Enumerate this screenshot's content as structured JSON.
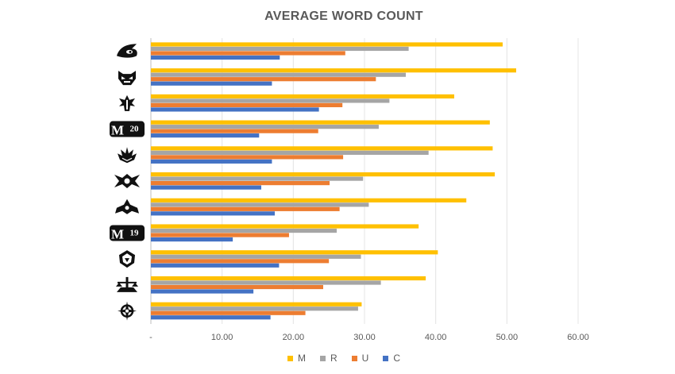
{
  "chart_data": {
    "type": "bar",
    "orientation": "horizontal",
    "title": "AVERAGE WORD COUNT",
    "categories": [
      "set-1",
      "set-2",
      "set-3",
      "M20",
      "set-5",
      "set-6",
      "set-7",
      "M19",
      "set-9",
      "set-10",
      "set-11"
    ],
    "category_icons": [
      "claw-face-set-icon",
      "demon-mask-set-icon",
      "spire-set-icon",
      "m20-core-set-icon",
      "trident-crown-set-icon",
      "warship-set-icon",
      "fortress-set-icon",
      "m19-core-set-icon",
      "shield-face-set-icon",
      "scales-set-icon",
      "compass-star-set-icon"
    ],
    "category_labels": [
      "",
      "",
      "",
      "M20",
      "",
      "",
      "",
      "M19",
      "",
      "",
      ""
    ],
    "series": [
      {
        "name": "M",
        "color": "#FFC000",
        "values": [
          49.4,
          51.3,
          42.6,
          47.6,
          48.0,
          48.3,
          44.3,
          37.6,
          40.3,
          38.6,
          29.6
        ]
      },
      {
        "name": "R",
        "color": "#A5A5A5",
        "values": [
          36.2,
          35.8,
          33.5,
          32.0,
          39.0,
          29.8,
          30.6,
          26.1,
          29.5,
          32.3,
          29.1
        ]
      },
      {
        "name": "U",
        "color": "#ED7D31",
        "values": [
          27.3,
          31.6,
          26.9,
          23.5,
          27.0,
          25.1,
          26.5,
          19.4,
          25.0,
          24.2,
          21.7
        ]
      },
      {
        "name": "C",
        "color": "#4472C4",
        "values": [
          18.1,
          17.0,
          23.6,
          15.2,
          17.0,
          15.5,
          17.4,
          11.5,
          18.0,
          14.4,
          16.8
        ]
      }
    ],
    "xlim": [
      0,
      60
    ],
    "x_ticks": [
      0,
      10,
      20,
      30,
      40,
      50,
      60
    ],
    "x_tick_labels": [
      "-",
      "10.00",
      "20.00",
      "30.00",
      "40.00",
      "50.00",
      "60.00"
    ],
    "grid": true,
    "legend_position": "bottom",
    "xlabel": "",
    "ylabel": ""
  }
}
